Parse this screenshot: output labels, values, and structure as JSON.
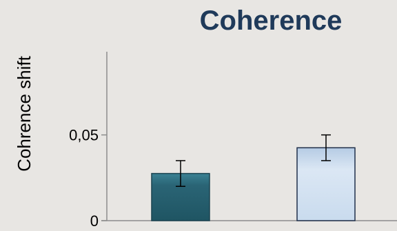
{
  "chart_data": {
    "type": "bar",
    "title": "Coherence",
    "xlabel": "",
    "ylabel": "Cohrence shift",
    "ylim": [
      0,
      0.0985
    ],
    "yticks": [
      {
        "value": 0,
        "label": "0"
      },
      {
        "value": 0.05,
        "label": "0,05"
      }
    ],
    "grid": false,
    "series": [
      {
        "values": [
          0.0275,
          0.0425
        ],
        "errors": [
          0.0075,
          0.0075
        ],
        "colors": [
          "#2b6173",
          "#c8d9ec"
        ]
      }
    ],
    "categories": [
      "",
      ""
    ]
  }
}
